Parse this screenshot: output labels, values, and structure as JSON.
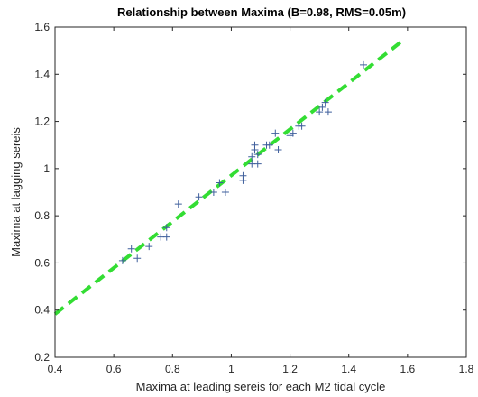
{
  "chart_data": {
    "type": "scatter",
    "title": "Relationship between Maxima (B=0.98,  RMS=0.05m)",
    "xlabel": "Maxima at leading sereis for each M2 tidal cycle",
    "ylabel": "Maxima at lagging sereis",
    "xlim": [
      0.4,
      1.8
    ],
    "ylim": [
      0.2,
      1.6
    ],
    "xticks": [
      "0.4",
      "0.6",
      "0.8",
      "1",
      "1.2",
      "1.4",
      "1.6",
      "1.8"
    ],
    "yticks": [
      "0.2",
      "0.4",
      "0.6",
      "0.8",
      "1",
      "1.2",
      "1.4",
      "1.6"
    ],
    "grid": false,
    "points": [
      {
        "x": 0.63,
        "y": 0.61
      },
      {
        "x": 0.66,
        "y": 0.66
      },
      {
        "x": 0.68,
        "y": 0.62
      },
      {
        "x": 0.72,
        "y": 0.67
      },
      {
        "x": 0.76,
        "y": 0.71
      },
      {
        "x": 0.78,
        "y": 0.71
      },
      {
        "x": 0.78,
        "y": 0.75
      },
      {
        "x": 0.82,
        "y": 0.85
      },
      {
        "x": 0.89,
        "y": 0.88
      },
      {
        "x": 0.94,
        "y": 0.9
      },
      {
        "x": 0.96,
        "y": 0.94
      },
      {
        "x": 0.98,
        "y": 0.9
      },
      {
        "x": 1.04,
        "y": 0.95
      },
      {
        "x": 1.04,
        "y": 0.97
      },
      {
        "x": 1.07,
        "y": 1.02
      },
      {
        "x": 1.07,
        "y": 1.05
      },
      {
        "x": 1.08,
        "y": 1.08
      },
      {
        "x": 1.08,
        "y": 1.1
      },
      {
        "x": 1.09,
        "y": 1.02
      },
      {
        "x": 1.09,
        "y": 1.06
      },
      {
        "x": 1.12,
        "y": 1.1
      },
      {
        "x": 1.13,
        "y": 1.1
      },
      {
        "x": 1.15,
        "y": 1.15
      },
      {
        "x": 1.16,
        "y": 1.08
      },
      {
        "x": 1.2,
        "y": 1.14
      },
      {
        "x": 1.21,
        "y": 1.15
      },
      {
        "x": 1.23,
        "y": 1.18
      },
      {
        "x": 1.24,
        "y": 1.18
      },
      {
        "x": 1.3,
        "y": 1.24
      },
      {
        "x": 1.31,
        "y": 1.26
      },
      {
        "x": 1.32,
        "y": 1.28
      },
      {
        "x": 1.33,
        "y": 1.24
      },
      {
        "x": 1.45,
        "y": 1.44
      }
    ],
    "fit_line": {
      "x": [
        0.4,
        1.58
      ],
      "y": [
        0.383,
        1.5394
      ]
    },
    "colors": {
      "points": "#3f5f9c",
      "fit_line": "#33dd33",
      "axes": "#262626"
    }
  }
}
